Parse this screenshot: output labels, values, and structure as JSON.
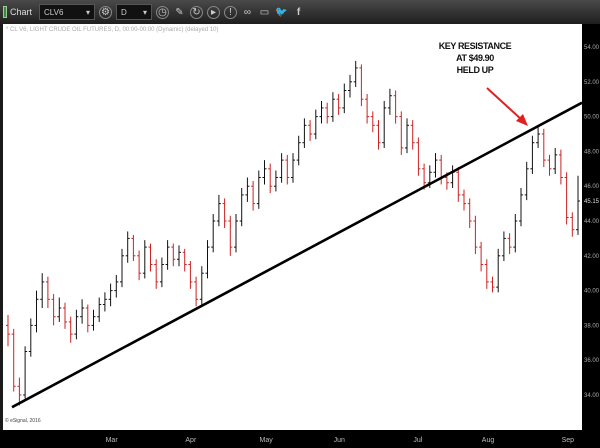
{
  "toolbar": {
    "title": "Chart",
    "symbol": "CLV6",
    "interval": "D",
    "icons": [
      "settings-icon",
      "clock-icon",
      "pencil-icon",
      "refresh-icon",
      "play-icon",
      "alert-icon",
      "link-icon",
      "comment-icon",
      "twitter-icon",
      "facebook-icon"
    ]
  },
  "info_line": "* CL V6, LIGHT CRUDE OIL FUTURES, D, 00:00-00:00 (Dynamic) (delayed 10)",
  "copyright": "© eSignal, 2016",
  "colors": {
    "up": "#111111",
    "down": "#cc2222",
    "trendline": "#000000",
    "arrow": "#e02020",
    "plot_bg": "#ffffff",
    "axis_bg": "#000000"
  },
  "chart_data": {
    "type": "ohlc",
    "title": "",
    "annotation": [
      "KEY RESISTANCE",
      "AT  $49.90",
      "HELD UP"
    ],
    "y_ticks": [
      "34.00",
      "36.00",
      "38.00",
      "40.00",
      "42.00",
      "44.00",
      "46.00",
      "48.00",
      "50.00",
      "52.00",
      "54.00"
    ],
    "ylim": [
      32.2,
      56.5
    ],
    "last_price": "45.15",
    "x_ticks": [
      {
        "label": "Mar",
        "bar": 18
      },
      {
        "label": "Apr",
        "bar": 32
      },
      {
        "label": "May",
        "bar": 45
      },
      {
        "label": "Jun",
        "bar": 58
      },
      {
        "label": "Jul",
        "bar": 72
      },
      {
        "label": "Aug",
        "bar": 84
      },
      {
        "label": "Sep",
        "bar": 98
      }
    ],
    "trendline": {
      "start_price": 33.3,
      "end_price": 50.8
    },
    "grid": false,
    "bars": [
      [
        38.0,
        38.6,
        36.8,
        37.5
      ],
      [
        37.5,
        37.8,
        34.2,
        34.5
      ],
      [
        34.5,
        35.0,
        33.4,
        34.0
      ],
      [
        34.0,
        36.8,
        33.8,
        36.5
      ],
      [
        36.5,
        38.4,
        36.2,
        38.0
      ],
      [
        38.0,
        40.0,
        37.6,
        39.5
      ],
      [
        39.5,
        41.0,
        39.0,
        40.5
      ],
      [
        40.5,
        40.8,
        39.0,
        39.5
      ],
      [
        39.5,
        39.8,
        38.0,
        38.5
      ],
      [
        38.5,
        39.6,
        38.2,
        39.0
      ],
      [
        39.0,
        39.3,
        37.8,
        38.2
      ],
      [
        38.2,
        38.5,
        37.0,
        37.5
      ],
      [
        37.5,
        38.9,
        37.2,
        38.5
      ],
      [
        38.5,
        39.5,
        38.1,
        39.0
      ],
      [
        39.0,
        39.2,
        37.6,
        38.0
      ],
      [
        38.0,
        38.9,
        37.7,
        38.5
      ],
      [
        38.5,
        39.6,
        38.2,
        39.2
      ],
      [
        39.2,
        39.9,
        38.8,
        39.5
      ],
      [
        39.5,
        40.4,
        39.1,
        40.0
      ],
      [
        40.0,
        40.9,
        39.6,
        40.5
      ],
      [
        40.5,
        42.4,
        40.2,
        42.0
      ],
      [
        42.0,
        43.4,
        41.6,
        43.0
      ],
      [
        43.0,
        43.2,
        41.7,
        42.0
      ],
      [
        42.0,
        42.3,
        40.6,
        41.0
      ],
      [
        41.0,
        42.9,
        40.7,
        42.5
      ],
      [
        42.5,
        42.7,
        41.1,
        41.5
      ],
      [
        41.5,
        41.8,
        40.1,
        40.5
      ],
      [
        40.5,
        41.9,
        40.2,
        41.5
      ],
      [
        41.5,
        42.9,
        41.2,
        42.5
      ],
      [
        42.5,
        42.7,
        41.4,
        41.8
      ],
      [
        41.8,
        42.6,
        41.4,
        42.2
      ],
      [
        42.2,
        42.4,
        41.1,
        41.5
      ],
      [
        41.5,
        41.7,
        40.1,
        40.5
      ],
      [
        40.5,
        40.8,
        39.1,
        39.5
      ],
      [
        39.5,
        41.4,
        39.2,
        41.0
      ],
      [
        41.0,
        42.9,
        40.7,
        42.5
      ],
      [
        42.5,
        44.4,
        42.2,
        44.0
      ],
      [
        44.0,
        45.5,
        43.7,
        45.0
      ],
      [
        45.0,
        45.3,
        43.6,
        44.0
      ],
      [
        44.0,
        44.3,
        42.0,
        42.5
      ],
      [
        42.5,
        44.4,
        42.2,
        44.0
      ],
      [
        44.0,
        45.9,
        43.7,
        45.5
      ],
      [
        45.5,
        46.5,
        45.1,
        46.0
      ],
      [
        46.0,
        46.3,
        44.6,
        45.0
      ],
      [
        45.0,
        46.9,
        44.7,
        46.5
      ],
      [
        46.5,
        47.5,
        46.1,
        47.0
      ],
      [
        47.0,
        47.3,
        45.6,
        46.0
      ],
      [
        46.0,
        46.9,
        45.7,
        46.5
      ],
      [
        46.5,
        47.9,
        46.2,
        47.5
      ],
      [
        47.5,
        47.8,
        46.1,
        46.5
      ],
      [
        46.5,
        47.9,
        46.2,
        47.5
      ],
      [
        47.5,
        48.9,
        47.2,
        48.5
      ],
      [
        48.5,
        49.9,
        48.2,
        49.5
      ],
      [
        49.5,
        49.8,
        48.6,
        49.0
      ],
      [
        49.0,
        50.4,
        48.7,
        50.0
      ],
      [
        50.0,
        50.9,
        49.6,
        50.5
      ],
      [
        50.5,
        50.8,
        49.6,
        50.0
      ],
      [
        50.0,
        51.4,
        49.7,
        51.0
      ],
      [
        51.0,
        51.3,
        50.1,
        50.5
      ],
      [
        50.5,
        51.9,
        50.2,
        51.5
      ],
      [
        51.5,
        52.4,
        51.1,
        52.0
      ],
      [
        52.0,
        53.2,
        51.7,
        52.8
      ],
      [
        52.8,
        53.0,
        50.6,
        51.0
      ],
      [
        51.0,
        51.3,
        49.6,
        50.0
      ],
      [
        50.0,
        50.3,
        49.1,
        49.5
      ],
      [
        49.5,
        49.8,
        48.1,
        48.5
      ],
      [
        48.5,
        50.9,
        48.2,
        50.5
      ],
      [
        50.5,
        51.6,
        50.1,
        51.2
      ],
      [
        51.2,
        51.5,
        49.6,
        50.0
      ],
      [
        50.0,
        50.3,
        47.8,
        48.2
      ],
      [
        48.2,
        49.9,
        47.9,
        49.5
      ],
      [
        49.5,
        49.8,
        48.1,
        48.5
      ],
      [
        48.5,
        48.8,
        46.6,
        47.0
      ],
      [
        47.0,
        47.3,
        45.8,
        46.2
      ],
      [
        46.2,
        47.2,
        45.9,
        46.8
      ],
      [
        46.8,
        47.9,
        46.5,
        47.5
      ],
      [
        47.5,
        47.8,
        46.1,
        46.5
      ],
      [
        46.5,
        46.8,
        45.8,
        46.2
      ],
      [
        46.2,
        47.2,
        45.9,
        46.8
      ],
      [
        46.8,
        47.1,
        45.1,
        45.5
      ],
      [
        45.5,
        45.8,
        44.6,
        45.0
      ],
      [
        45.0,
        45.3,
        43.6,
        44.0
      ],
      [
        44.0,
        44.3,
        42.1,
        42.5
      ],
      [
        42.5,
        42.8,
        41.1,
        41.5
      ],
      [
        41.5,
        41.8,
        40.1,
        40.5
      ],
      [
        40.5,
        40.8,
        39.9,
        40.2
      ],
      [
        40.2,
        42.4,
        39.9,
        42.0
      ],
      [
        42.0,
        43.4,
        41.7,
        43.0
      ],
      [
        43.0,
        43.3,
        42.1,
        42.5
      ],
      [
        42.5,
        44.4,
        42.2,
        44.0
      ],
      [
        44.0,
        45.9,
        43.7,
        45.5
      ],
      [
        45.5,
        47.4,
        45.2,
        47.0
      ],
      [
        47.0,
        48.9,
        46.7,
        48.5
      ],
      [
        48.5,
        49.4,
        48.2,
        49.0
      ],
      [
        49.0,
        49.3,
        47.1,
        47.5
      ],
      [
        47.5,
        47.8,
        46.6,
        47.0
      ],
      [
        47.0,
        48.2,
        46.7,
        47.8
      ],
      [
        47.8,
        48.1,
        46.1,
        46.5
      ],
      [
        46.5,
        46.8,
        43.8,
        44.2
      ],
      [
        44.2,
        44.5,
        43.1,
        43.5
      ],
      [
        43.5,
        46.6,
        43.2,
        45.15
      ]
    ]
  }
}
